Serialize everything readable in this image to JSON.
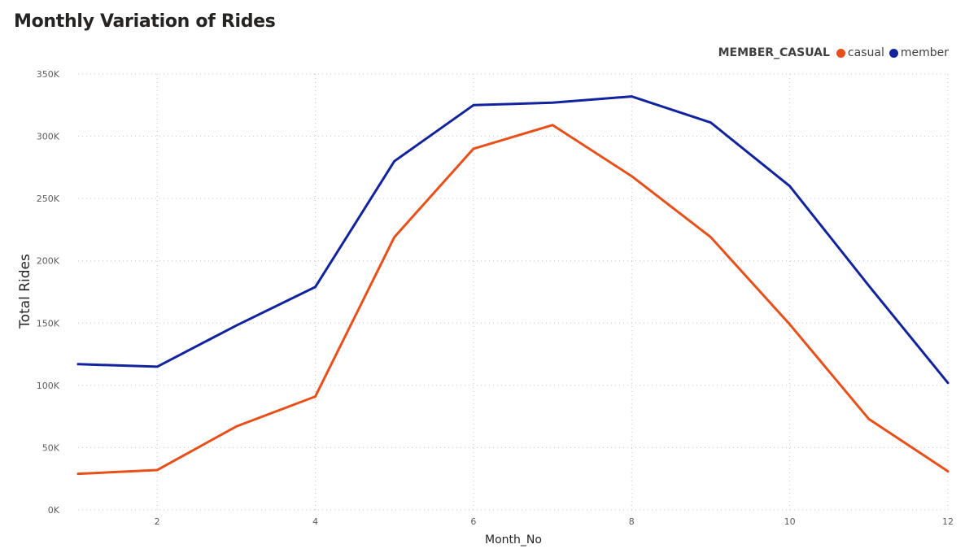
{
  "title": "Monthly Variation of Rides",
  "legend": {
    "title": "MEMBER_CASUAL",
    "items": [
      {
        "label": "casual",
        "color": "#E8501A"
      },
      {
        "label": "member",
        "color": "#12239E"
      }
    ]
  },
  "chart_data": {
    "type": "line",
    "title": "Monthly Variation of Rides",
    "xlabel": "Month_No",
    "ylabel": "Total Rides",
    "x": [
      1,
      2,
      3,
      4,
      5,
      6,
      7,
      8,
      9,
      10,
      11,
      12
    ],
    "xticks": [
      2,
      4,
      6,
      8,
      10,
      12
    ],
    "xlim": [
      1,
      12
    ],
    "ylim": [
      0,
      350000
    ],
    "yticks": [
      0,
      50000,
      100000,
      150000,
      200000,
      250000,
      300000,
      350000
    ],
    "ytick_labels": [
      "0K",
      "50K",
      "100K",
      "150K",
      "200K",
      "250K",
      "300K",
      "350K"
    ],
    "grid": true,
    "legend_position": "top-right",
    "series": [
      {
        "name": "casual",
        "color": "#E8501A",
        "values": [
          29000,
          32000,
          67000,
          91000,
          219000,
          290000,
          309000,
          268000,
          219000,
          149000,
          73000,
          31000
        ]
      },
      {
        "name": "member",
        "color": "#12239E",
        "values": [
          117000,
          115000,
          148000,
          179000,
          280000,
          325000,
          327000,
          332000,
          311000,
          260000,
          180000,
          102000
        ]
      }
    ]
  }
}
